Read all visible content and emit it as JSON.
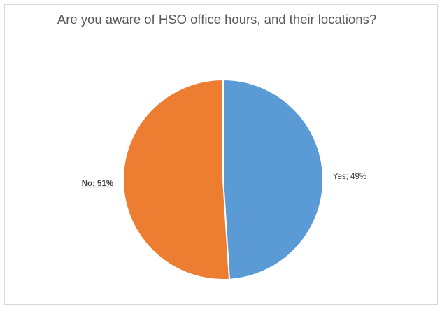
{
  "chart_data": {
    "type": "pie",
    "title": "Are you aware of HSO office hours, and their locations?",
    "slices": [
      {
        "label": "Yes",
        "value": 49,
        "color": "#5b9bd5",
        "data_label": "Yes; 49%",
        "label_style": "normal"
      },
      {
        "label": "No",
        "value": 51,
        "color": "#ed7d31",
        "data_label": "No; 51%",
        "label_style": "bold-underline"
      }
    ],
    "legend": "none",
    "start_angle": "12 o'clock",
    "direction": "clockwise"
  }
}
